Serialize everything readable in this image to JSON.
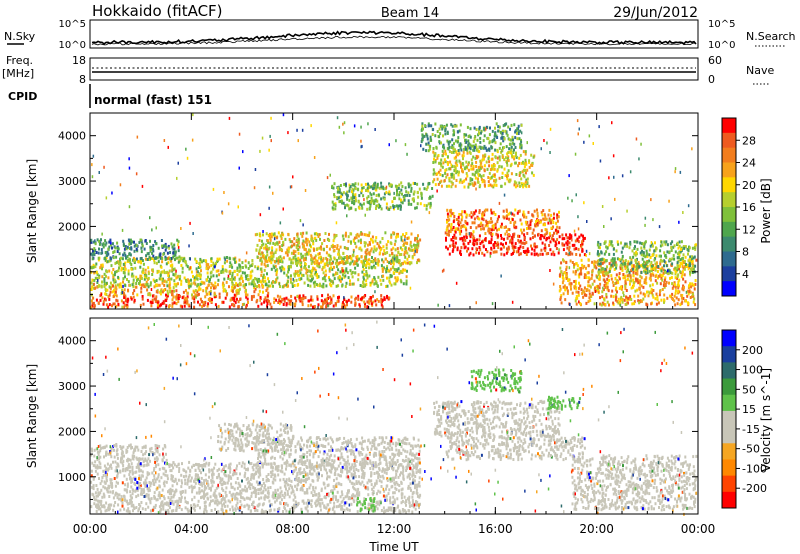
{
  "header": {
    "title": "Hokkaido (fitACF)",
    "beam": "Beam 14",
    "date": "29/Jun/2012"
  },
  "noise_panel": {
    "left_label": "N.Sky",
    "right_label": "N.Search",
    "left_ticks": [
      "10^5",
      "10^0"
    ],
    "right_ticks": [
      "10^5",
      "10^0"
    ]
  },
  "freq_panel": {
    "left_label_1": "Freq.",
    "left_label_2": "[MHz]",
    "right_label": "Nave",
    "left_ticks": [
      "18",
      "8"
    ],
    "right_ticks": [
      "60",
      "0"
    ]
  },
  "cpid_panel": {
    "label": "CPID",
    "text": "normal (fast) 151"
  },
  "chart_data": [
    {
      "type": "heatmap",
      "quantity": "Power",
      "ylabel": "Slant Range [km]",
      "yticks": [
        1000,
        2000,
        3000,
        4000
      ],
      "ylim": [
        180,
        4500
      ],
      "xlim": [
        0,
        24
      ],
      "colorbar": {
        "label": "Power [dB]",
        "ticks": [
          "28",
          "24",
          "20",
          "16",
          "12",
          "8",
          "4"
        ],
        "range": [
          0,
          32
        ],
        "colors": [
          "#0000ff",
          "#1c3f9e",
          "#2e6b8f",
          "#3c8a6e",
          "#4fa64d",
          "#7fc03a",
          "#b6cf2e",
          "#ffd700",
          "#f7a21b",
          "#f27d1d",
          "#ee5a1f",
          "#ff0000"
        ]
      },
      "bands": [
        {
          "t0": 0.0,
          "t1": 11.8,
          "r0": 250,
          "r1": 520,
          "level": 28
        },
        {
          "t0": 0.0,
          "t1": 7.0,
          "r0": 520,
          "r1": 760,
          "level": 22
        },
        {
          "t0": 0.0,
          "t1": 12.5,
          "r0": 700,
          "r1": 1350,
          "level": 17
        },
        {
          "t0": 0.0,
          "t1": 3.5,
          "r0": 1300,
          "r1": 1750,
          "level": 9
        },
        {
          "t0": 6.5,
          "t1": 13.0,
          "r0": 1200,
          "r1": 1900,
          "level": 20
        },
        {
          "t0": 9.5,
          "t1": 13.5,
          "r0": 2400,
          "r1": 3000,
          "level": 14
        },
        {
          "t0": 14.0,
          "t1": 19.5,
          "r0": 1400,
          "r1": 1850,
          "level": 30
        },
        {
          "t0": 14.0,
          "t1": 18.5,
          "r0": 1850,
          "r1": 2400,
          "level": 25
        },
        {
          "t0": 13.5,
          "t1": 17.5,
          "r0": 2900,
          "r1": 3700,
          "level": 19
        },
        {
          "t0": 18.5,
          "t1": 23.9,
          "r0": 300,
          "r1": 1300,
          "level": 23
        },
        {
          "t0": 20.0,
          "t1": 23.9,
          "r0": 1000,
          "r1": 1700,
          "level": 14
        },
        {
          "t0": 13.0,
          "t1": 17.0,
          "r0": 3700,
          "r1": 4300,
          "level": 12
        }
      ]
    },
    {
      "type": "heatmap",
      "quantity": "Velocity",
      "ylabel": "Slant Range [km]",
      "yticks": [
        1000,
        2000,
        3000,
        4000
      ],
      "ylim": [
        180,
        4500
      ],
      "xlim": [
        0,
        24
      ],
      "xlabel": "Time UT",
      "xticks": [
        "00:00",
        "04:00",
        "08:00",
        "12:00",
        "16:00",
        "20:00",
        "00:00"
      ],
      "colorbar": {
        "label": "Velocity [m s^-1]",
        "ticks": [
          "200",
          "100",
          "50",
          "15",
          "-15",
          "-50",
          "-100",
          "-200"
        ],
        "range": [
          -250,
          250
        ],
        "colors": [
          "#ff0000",
          "#ff4400",
          "#ff8800",
          "#f5a623",
          "#c8c6b8",
          "#c8c6b8",
          "#5fc24a",
          "#3b9a3b",
          "#2d6b6b",
          "#1a3f9e",
          "#0000ff"
        ]
      },
      "bands": [
        {
          "t0": 0.0,
          "t1": 13.0,
          "r0": 250,
          "r1": 1350,
          "level": 0
        },
        {
          "t0": 0.0,
          "t1": 3.0,
          "r0": 1350,
          "r1": 1750,
          "level": 0
        },
        {
          "t0": 6.5,
          "t1": 13.0,
          "r0": 1200,
          "r1": 1900,
          "level": 0
        },
        {
          "t0": 14.0,
          "t1": 19.5,
          "r0": 1400,
          "r1": 1900,
          "level": 0
        },
        {
          "t0": 13.5,
          "t1": 18.5,
          "r0": 1900,
          "r1": 2700,
          "level": 0
        },
        {
          "t0": 19.0,
          "t1": 23.9,
          "r0": 300,
          "r1": 1500,
          "level": 0
        },
        {
          "t0": 15.0,
          "t1": 17.0,
          "r0": 2900,
          "r1": 3400,
          "level": 55
        },
        {
          "t0": 18.0,
          "t1": 19.3,
          "r0": 2500,
          "r1": 2800,
          "level": 50
        },
        {
          "t0": 10.5,
          "t1": 11.2,
          "r0": 250,
          "r1": 600,
          "level": 40
        },
        {
          "t0": 5.0,
          "t1": 8.0,
          "r0": 1600,
          "r1": 2200,
          "level": 0
        }
      ]
    }
  ]
}
